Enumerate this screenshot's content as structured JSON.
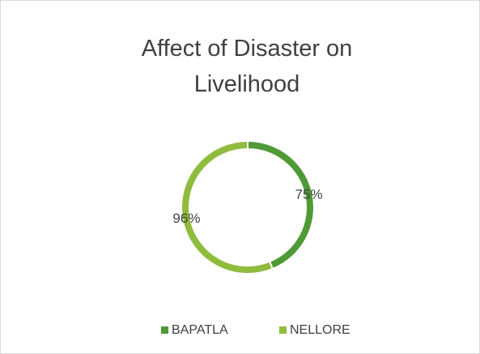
{
  "chart_data": {
    "type": "doughnut",
    "title": "Affect of Disaster on Livelihood",
    "categories": [
      "BAPATLA",
      "NELLORE"
    ],
    "values": [
      75,
      96
    ],
    "value_labels": [
      "75%",
      "96%"
    ],
    "colors": [
      "#4f9a37",
      "#8fbc3c"
    ],
    "legend": "bottom"
  }
}
